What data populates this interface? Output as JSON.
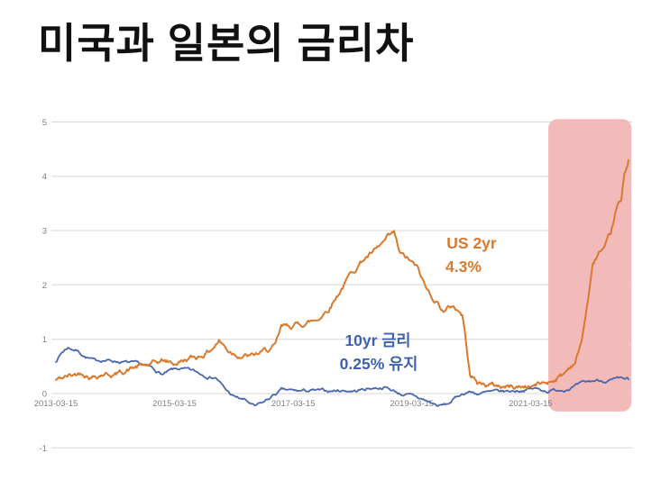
{
  "chart_data": {
    "type": "line",
    "title": "미국과 일본의 금리차",
    "xlabel": "",
    "ylabel": "",
    "ylim": [
      -1,
      5
    ],
    "grid": "horizontal",
    "legend": "none",
    "y_ticks": [
      {
        "label": "5",
        "value": 5
      },
      {
        "label": "4",
        "value": 4
      },
      {
        "label": "3",
        "value": 3
      },
      {
        "label": "2",
        "value": 2
      },
      {
        "label": "1",
        "value": 1
      },
      {
        "label": "0",
        "value": 0
      },
      {
        "label": "-1",
        "value": -1
      }
    ],
    "x_ticks": [
      {
        "label": "2013-03-15",
        "t": 2013.2
      },
      {
        "label": "2015-03-15",
        "t": 2015.2
      },
      {
        "label": "2017-03-15",
        "t": 2017.2
      },
      {
        "label": "2019-03-15",
        "t": 2019.2
      },
      {
        "label": "2021-03-15",
        "t": 2021.2
      }
    ],
    "series": [
      {
        "name": "JP 10yr",
        "color": "#4a67ad",
        "points": [
          [
            2013.2,
            0.6
          ],
          [
            2013.3,
            0.76
          ],
          [
            2013.4,
            0.85
          ],
          [
            2013.55,
            0.8
          ],
          [
            2013.7,
            0.68
          ],
          [
            2013.85,
            0.6
          ],
          [
            2014.0,
            0.62
          ],
          [
            2014.2,
            0.6
          ],
          [
            2014.4,
            0.57
          ],
          [
            2014.6,
            0.53
          ],
          [
            2014.8,
            0.47
          ],
          [
            2015.0,
            0.35
          ],
          [
            2015.15,
            0.42
          ],
          [
            2015.3,
            0.45
          ],
          [
            2015.5,
            0.41
          ],
          [
            2015.7,
            0.34
          ],
          [
            2015.9,
            0.3
          ],
          [
            2016.05,
            0.08
          ],
          [
            2016.2,
            -0.06
          ],
          [
            2016.4,
            -0.13
          ],
          [
            2016.55,
            -0.25
          ],
          [
            2016.7,
            -0.17
          ],
          [
            2016.85,
            -0.05
          ],
          [
            2017.0,
            0.06
          ],
          [
            2017.25,
            0.04
          ],
          [
            2017.5,
            0.05
          ],
          [
            2017.75,
            0.04
          ],
          [
            2018.0,
            0.06
          ],
          [
            2018.25,
            0.05
          ],
          [
            2018.5,
            0.1
          ],
          [
            2018.75,
            0.12
          ],
          [
            2019.0,
            0.0
          ],
          [
            2019.25,
            -0.06
          ],
          [
            2019.5,
            -0.16
          ],
          [
            2019.65,
            -0.23
          ],
          [
            2019.8,
            -0.2
          ],
          [
            2020.0,
            -0.03
          ],
          [
            2020.15,
            0.04
          ],
          [
            2020.3,
            0.0
          ],
          [
            2020.5,
            0.02
          ],
          [
            2020.75,
            0.03
          ],
          [
            2021.0,
            0.06
          ],
          [
            2021.25,
            0.09
          ],
          [
            2021.5,
            0.05
          ],
          [
            2021.75,
            0.08
          ],
          [
            2022.0,
            0.15
          ],
          [
            2022.15,
            0.2
          ],
          [
            2022.3,
            0.24
          ],
          [
            2022.5,
            0.24
          ],
          [
            2022.7,
            0.25
          ],
          [
            2022.85,
            0.26
          ]
        ]
      },
      {
        "name": "US 2yr",
        "color": "#d9792e",
        "points": [
          [
            2013.2,
            0.25
          ],
          [
            2013.35,
            0.3
          ],
          [
            2013.5,
            0.34
          ],
          [
            2013.65,
            0.4
          ],
          [
            2013.8,
            0.32
          ],
          [
            2014.0,
            0.38
          ],
          [
            2014.2,
            0.35
          ],
          [
            2014.4,
            0.44
          ],
          [
            2014.6,
            0.5
          ],
          [
            2014.8,
            0.52
          ],
          [
            2015.0,
            0.6
          ],
          [
            2015.2,
            0.55
          ],
          [
            2015.4,
            0.63
          ],
          [
            2015.6,
            0.68
          ],
          [
            2015.8,
            0.8
          ],
          [
            2015.95,
            0.98
          ],
          [
            2016.1,
            0.8
          ],
          [
            2016.3,
            0.72
          ],
          [
            2016.5,
            0.68
          ],
          [
            2016.7,
            0.76
          ],
          [
            2016.9,
            0.86
          ],
          [
            2017.0,
            1.2
          ],
          [
            2017.2,
            1.25
          ],
          [
            2017.4,
            1.3
          ],
          [
            2017.6,
            1.36
          ],
          [
            2017.8,
            1.58
          ],
          [
            2018.0,
            1.92
          ],
          [
            2018.2,
            2.25
          ],
          [
            2018.4,
            2.5
          ],
          [
            2018.6,
            2.62
          ],
          [
            2018.8,
            2.85
          ],
          [
            2018.9,
            2.92
          ],
          [
            2019.0,
            2.55
          ],
          [
            2019.15,
            2.45
          ],
          [
            2019.3,
            2.28
          ],
          [
            2019.45,
            1.9
          ],
          [
            2019.6,
            1.72
          ],
          [
            2019.75,
            1.52
          ],
          [
            2019.9,
            1.62
          ],
          [
            2020.05,
            1.45
          ],
          [
            2020.18,
            0.4
          ],
          [
            2020.3,
            0.2
          ],
          [
            2020.5,
            0.16
          ],
          [
            2020.75,
            0.13
          ],
          [
            2021.0,
            0.12
          ],
          [
            2021.25,
            0.15
          ],
          [
            2021.5,
            0.22
          ],
          [
            2021.75,
            0.35
          ],
          [
            2021.95,
            0.6
          ],
          [
            2022.05,
            0.9
          ],
          [
            2022.15,
            1.6
          ],
          [
            2022.25,
            2.35
          ],
          [
            2022.35,
            2.6
          ],
          [
            2022.45,
            2.62
          ],
          [
            2022.55,
            2.9
          ],
          [
            2022.62,
            3.25
          ],
          [
            2022.68,
            3.48
          ],
          [
            2022.73,
            3.5
          ],
          [
            2022.78,
            4.05
          ],
          [
            2022.82,
            4.15
          ],
          [
            2022.85,
            4.3
          ]
        ]
      }
    ],
    "annotations": [
      {
        "target": "US 2yr",
        "color": "#d9792e",
        "lines": [
          "US 2yr",
          "4.3%"
        ]
      },
      {
        "target": "JP 10yr",
        "color": "#3f62ad",
        "lines": [
          "10yr 금리",
          "0.25% 유지"
        ]
      }
    ],
    "highlight": {
      "x0": 2021.5,
      "x1": 2022.9,
      "y0": -0.33,
      "y1": 5.05,
      "color": "#f3baba"
    }
  }
}
